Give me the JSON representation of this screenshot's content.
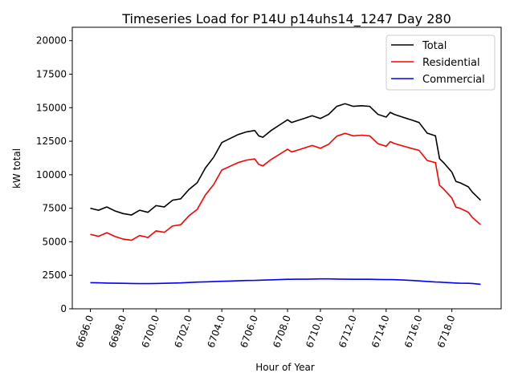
{
  "chart_data": {
    "type": "line",
    "title": "Timeseries Load for P14U p14uhs14_1247  Day 280",
    "xlabel": "Hour of Year",
    "ylabel": "kW total",
    "xlim": [
      6694.9,
      6721.0
    ],
    "ylim": [
      0,
      21000
    ],
    "xticks": [
      6696,
      6698,
      6700,
      6702,
      6704,
      6706,
      6708,
      6710,
      6712,
      6714,
      6716,
      6718
    ],
    "xtick_labels": [
      "6696.0",
      "6698.0",
      "6700.0",
      "6702.0",
      "6704.0",
      "6706.0",
      "6708.0",
      "6710.0",
      "6712.0",
      "6714.0",
      "6716.0",
      "6718.0"
    ],
    "yticks": [
      0,
      2500,
      5000,
      7500,
      10000,
      12500,
      15000,
      17500,
      20000
    ],
    "ytick_labels": [
      "0",
      "2500",
      "5000",
      "7500",
      "10000",
      "12500",
      "15000",
      "17500",
      "20000"
    ],
    "legend_position": "top-right",
    "grid": false,
    "x": [
      6696,
      6696.5,
      6697,
      6697.5,
      6698,
      6698.5,
      6699,
      6699.5,
      6700,
      6700.5,
      6701,
      6701.5,
      6702,
      6702.5,
      6703,
      6703.5,
      6704,
      6704.5,
      6705,
      6705.5,
      6706,
      6706.25,
      6706.5,
      6707,
      6707.5,
      6708,
      6708.25,
      6708.5,
      6709,
      6709.5,
      6710,
      6710.5,
      6711,
      6711.5,
      6712,
      6712.5,
      6713,
      6713.5,
      6714,
      6714.25,
      6714.5,
      6715,
      6715.5,
      6716,
      6716.5,
      6717,
      6717.25,
      6717.5,
      6718,
      6718.25,
      6718.5,
      6719,
      6719.25,
      6719.5,
      6719.75
    ],
    "series": [
      {
        "name": "Total",
        "color": "#000000",
        "values": [
          7500,
          7350,
          7600,
          7300,
          7100,
          7000,
          7350,
          7200,
          7700,
          7600,
          8100,
          8200,
          8900,
          9400,
          10500,
          11300,
          12400,
          12700,
          13000,
          13200,
          13300,
          12900,
          12800,
          13300,
          13700,
          14100,
          13900,
          14000,
          14200,
          14400,
          14200,
          14500,
          15100,
          15300,
          15100,
          15150,
          15100,
          14500,
          14300,
          14650,
          14500,
          14300,
          14100,
          13900,
          13100,
          12900,
          11200,
          10900,
          10200,
          9500,
          9400,
          9100,
          8700,
          8400,
          8100
        ]
      },
      {
        "name": "Residential",
        "color": "#ff0000",
        "values": [
          5550,
          5410,
          5680,
          5390,
          5200,
          5110,
          5470,
          5320,
          5810,
          5700,
          6180,
          6270,
          6940,
          7410,
          8490,
          9270,
          10350,
          10630,
          10910,
          11090,
          11180,
          10770,
          10660,
          11140,
          11520,
          11900,
          11700,
          11790,
          11990,
          12180,
          11970,
          12270,
          12880,
          13090,
          12900,
          12950,
          12900,
          12310,
          12120,
          12470,
          12330,
          12150,
          11980,
          11820,
          11060,
          10900,
          9210,
          8930,
          8260,
          7580,
          7490,
          7200,
          6810,
          6540,
          6270
        ]
      },
      {
        "name": "Commercial",
        "color": "#0000ff",
        "values": [
          1950,
          1940,
          1920,
          1910,
          1900,
          1890,
          1880,
          1880,
          1890,
          1900,
          1920,
          1930,
          1960,
          1990,
          2010,
          2030,
          2050,
          2070,
          2090,
          2110,
          2120,
          2130,
          2140,
          2160,
          2180,
          2200,
          2200,
          2210,
          2210,
          2220,
          2230,
          2230,
          2220,
          2210,
          2200,
          2200,
          2200,
          2190,
          2180,
          2180,
          2170,
          2150,
          2120,
          2080,
          2040,
          2000,
          1990,
          1970,
          1940,
          1920,
          1910,
          1900,
          1890,
          1860,
          1830
        ]
      }
    ]
  }
}
